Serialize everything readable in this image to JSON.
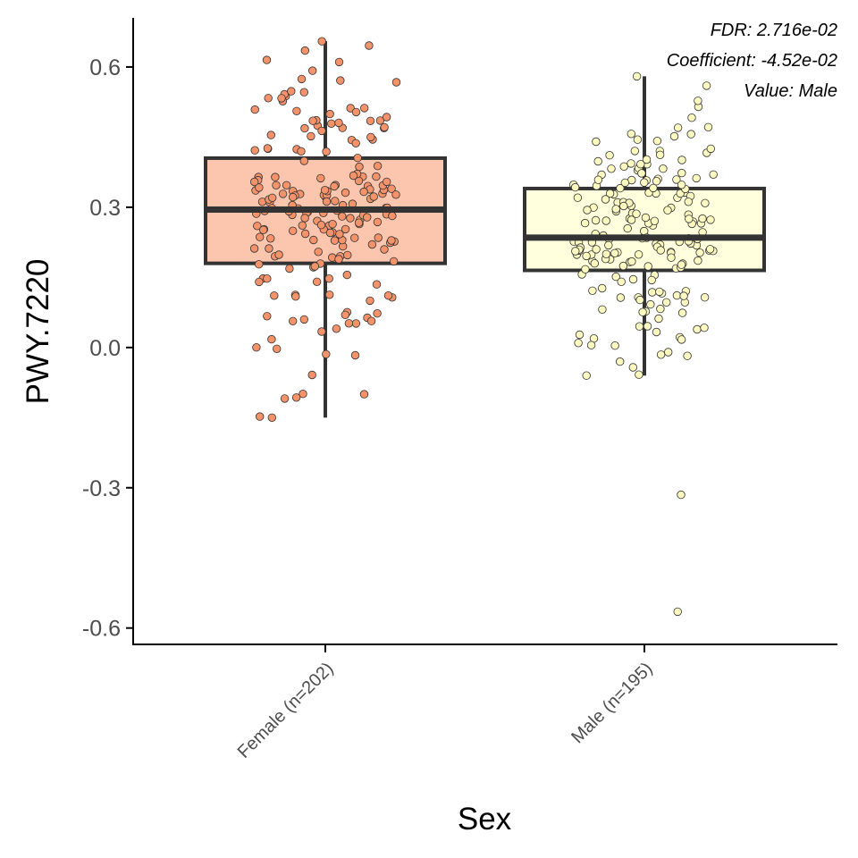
{
  "chart_data": {
    "type": "box",
    "xlabel": "Sex",
    "ylabel": "PWY.7220",
    "ylim": [
      -0.635,
      0.705
    ],
    "yticks": [
      -0.6,
      -0.3,
      0.0,
      0.3,
      0.6
    ],
    "ytick_labels": [
      "-0.6",
      "-0.3",
      "0.0",
      "0.3",
      "0.6"
    ],
    "grid": false,
    "annotations": [
      "FDR: 2.716e-02",
      "Coefficient: -4.52e-02",
      "Value: Male"
    ],
    "groups": [
      {
        "label": "Female (n=202)",
        "n": 202,
        "color": "#FCC5AE",
        "point_color": "#F4926A",
        "whisker_low": -0.15,
        "q1": 0.18,
        "median": 0.295,
        "q3": 0.405,
        "whisker_high": 0.655,
        "outliers": []
      },
      {
        "label": "Male (n=195)",
        "n": 195,
        "color": "#FFFFDD",
        "point_color": "#FBF8C0",
        "whisker_low": -0.06,
        "q1": 0.165,
        "median": 0.235,
        "q3": 0.34,
        "whisker_high": 0.58,
        "outliers": [
          -0.315,
          -0.565
        ]
      }
    ]
  }
}
